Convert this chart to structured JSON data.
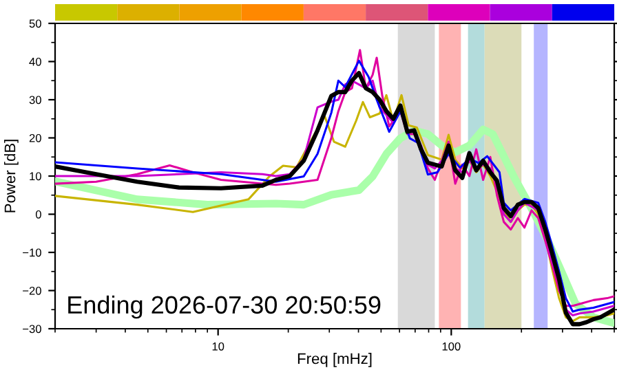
{
  "chart_data": {
    "type": "line",
    "xlabel": "Freq [mHz]",
    "ylabel": "Power [dB]",
    "log": "x",
    "xlim": [
      2,
      500
    ],
    "xticks": [
      10,
      100
    ],
    "ylim": [
      -30,
      50
    ],
    "yticks": [
      -30,
      -20,
      -10,
      0,
      10,
      20,
      30,
      40,
      50
    ],
    "grid": false,
    "legend": false,
    "line_style": "solid",
    "marker": "none",
    "annotations": [
      "Ending 2026-07-30 20:50:59"
    ],
    "bands": [
      {
        "axis": "x",
        "from": 59,
        "to": 85,
        "color": "#d9d9d9"
      },
      {
        "axis": "x",
        "from": 88.5,
        "to": 110,
        "color": "#ffb3b3"
      },
      {
        "axis": "x",
        "from": 118,
        "to": 139,
        "color": "#b3dcdc"
      },
      {
        "axis": "x",
        "from": 139,
        "to": 200,
        "color": "#dcdcb8"
      },
      {
        "axis": "x",
        "from": 226,
        "to": 259,
        "color": "#b5b5ff"
      }
    ],
    "series": [
      {
        "color": "#aaffaa",
        "x": [
          2.0,
          4.5,
          9.0,
          17.7,
          23.3,
          30.6,
          40.2,
          46.0,
          52.7,
          60.5,
          69.3,
          79.4,
          91.0,
          104,
          119.6,
          137,
          150.7,
          168,
          187,
          226,
          259,
          297,
          341,
          407,
          485
        ],
        "values": [
          8.6,
          3.9,
          2.5,
          2.8,
          2.5,
          5.1,
          6.3,
          9.9,
          15.8,
          19.9,
          21.9,
          21,
          18,
          16.2,
          18,
          22.2,
          21,
          15.2,
          9.4,
          0.4,
          -6.8,
          -15,
          -23.4,
          -27,
          -28.3
        ]
      },
      {
        "color": "#c8b400",
        "x": [
          2.0,
          4.5,
          7.8,
          13.5,
          16.6,
          19.0,
          21.7,
          24.9,
          28.6,
          31.4,
          35.1,
          39.1,
          41.8,
          44.8,
          49.3,
          52.7,
          56.4,
          61.2,
          65.6,
          71.2,
          79.4,
          91.0,
          97.4,
          104,
          111.5,
          119.6,
          128,
          137,
          147,
          157,
          168,
          180,
          193,
          206,
          221,
          236,
          253,
          270,
          290,
          310,
          332,
          355,
          407,
          466,
          499
        ],
        "values": [
          4.8,
          2.5,
          0.6,
          3.9,
          9.9,
          12.7,
          12.3,
          19,
          25.8,
          19,
          17.7,
          24.5,
          29.4,
          25.4,
          26.4,
          31.2,
          24.5,
          31.2,
          23.3,
          22.7,
          15.5,
          14.3,
          20.8,
          14.3,
          12,
          14,
          11,
          13,
          10,
          6,
          1,
          -2,
          1,
          2.5,
          2.5,
          0,
          -6,
          -14,
          -22,
          -27,
          -28,
          -27,
          -27,
          -26.5,
          -26
        ]
      },
      {
        "color": "#e000a0",
        "x": [
          2.0,
          3.0,
          4.5,
          6.2,
          7.8,
          10.3,
          15.5,
          17.7,
          20.3,
          23.3,
          26.7,
          30.6,
          32.8,
          35.1,
          37.5,
          40.6,
          43.0,
          46.0,
          47.9,
          50.6,
          54.2,
          60.5,
          64.8,
          69.3,
          74.2,
          79.4,
          85.0,
          91.0,
          97.4,
          104,
          111.5,
          119.6,
          128,
          137,
          147,
          157,
          168,
          180,
          193,
          206,
          221,
          236,
          253,
          270,
          290,
          310,
          332,
          355,
          407,
          466,
          499
        ],
        "values": [
          8,
          8.5,
          10.5,
          12.8,
          11,
          9,
          8,
          7.7,
          8,
          8.5,
          9,
          20,
          27,
          32,
          33,
          43,
          33,
          36.5,
          41,
          31,
          23,
          27,
          21,
          21,
          17,
          12,
          9,
          14,
          19,
          8,
          13,
          10,
          17,
          9,
          15,
          5,
          -2,
          -4,
          -1,
          -3.5,
          1,
          -1,
          -7,
          -13,
          -20,
          -24,
          -24,
          -23.5,
          -22.5,
          -22,
          -21.5
        ]
      },
      {
        "color": "#cc00cc",
        "x": [
          2.0,
          3.0,
          4.5,
          6.8,
          10.3,
          15.5,
          17.7,
          20.3,
          23.3,
          26.7,
          30.6,
          32.8,
          35.1,
          37.5,
          40.2,
          43.0,
          46.0,
          49.3,
          52.7,
          56.4,
          60.5,
          64.8,
          69.3,
          74.2,
          79.4,
          85.0,
          91.0,
          97.4,
          104,
          111.5,
          119.6,
          128,
          137,
          147,
          157,
          168,
          180,
          193,
          206,
          221,
          236,
          253,
          270,
          290,
          310,
          332,
          355,
          407,
          466,
          499
        ],
        "values": [
          10,
          10,
          10,
          10.5,
          11,
          10.5,
          10,
          10.5,
          14.5,
          28,
          29.5,
          30,
          34,
          35,
          34,
          33,
          35,
          28,
          26,
          24,
          27,
          22,
          22,
          18,
          13,
          12,
          14,
          16,
          12,
          11,
          14,
          12,
          13,
          12,
          8,
          0,
          -2,
          1,
          3,
          2,
          1,
          -5,
          -12,
          -18,
          -25,
          -26.5,
          -26,
          -25.5,
          -24.5,
          -24
        ]
      },
      {
        "color": "#0000ff",
        "x": [
          2.0,
          4.5,
          10.3,
          17.7,
          23.3,
          26.7,
          30.6,
          32.8,
          35.1,
          40.2,
          44.2,
          47.9,
          54.2,
          60.5,
          66.4,
          72.1,
          79.4,
          87.3,
          97.4,
          109,
          119.6,
          131,
          142.6,
          161,
          168,
          180,
          206,
          236,
          253,
          270,
          290,
          310,
          332,
          355,
          407,
          466,
          499
        ],
        "values": [
          13.6,
          12,
          10.5,
          8.5,
          9.9,
          15.8,
          26.6,
          35,
          33.3,
          40.2,
          36,
          30,
          21.6,
          27,
          19.9,
          18.7,
          10.4,
          11,
          15.8,
          12.2,
          14.6,
          13.4,
          15.2,
          11,
          3,
          1,
          4,
          3,
          -2,
          -8,
          -15,
          -22,
          -25.5,
          -25,
          -24.5,
          -23.5,
          -23
        ]
      },
      {
        "color": "#000000",
        "x": [
          2.0,
          3.0,
          4.5,
          6.8,
          10.3,
          15.5,
          17.7,
          20.3,
          23.3,
          26.7,
          30.6,
          32.8,
          35.1,
          37.5,
          40.2,
          43.0,
          46.0,
          49.3,
          52.7,
          56.4,
          60.5,
          64.8,
          69.3,
          74.2,
          79.4,
          85.0,
          91.0,
          97.4,
          104,
          111.5,
          119.6,
          128,
          137,
          147,
          157,
          168,
          180,
          193,
          206,
          221,
          236,
          253,
          270,
          290,
          310,
          332,
          355,
          380,
          407,
          436,
          466,
          499
        ],
        "values": [
          12.5,
          10.5,
          8.5,
          7,
          6.8,
          7.5,
          9,
          10,
          14,
          22,
          31,
          32,
          32,
          35,
          37,
          33,
          32,
          30,
          27,
          25,
          28.5,
          21.6,
          22,
          17,
          13.5,
          13,
          12.5,
          18,
          11.5,
          9.5,
          16,
          11.5,
          14,
          11,
          8.8,
          1.6,
          -0.5,
          2.5,
          3.2,
          3.2,
          1.6,
          -4,
          -10,
          -17,
          -25.8,
          -28.8,
          -28.8,
          -28.3,
          -27.5,
          -27,
          -26,
          -25
        ]
      }
    ]
  }
}
